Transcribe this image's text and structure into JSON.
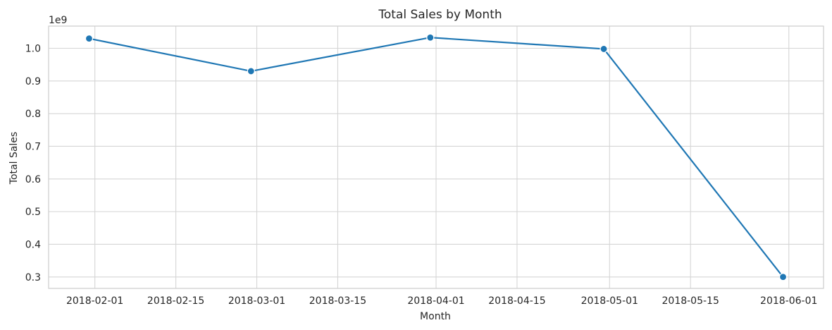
{
  "chart_data": {
    "type": "line",
    "title": "Total Sales by Month",
    "xlabel": "Month",
    "ylabel": "Total Sales",
    "y_multiplier_label": "1e9",
    "series": [
      {
        "x": [
          "2018-01-31",
          "2018-02-28",
          "2018-03-31",
          "2018-04-30",
          "2018-05-31"
        ],
        "values": [
          1.03,
          0.93,
          1.033,
          0.998,
          0.3
        ]
      }
    ],
    "x_ticks": [
      "2018-02-01",
      "2018-02-15",
      "2018-03-01",
      "2018-03-15",
      "2018-04-01",
      "2018-04-15",
      "2018-05-01",
      "2018-05-15",
      "2018-06-01"
    ],
    "y_ticks": [
      0.3,
      0.4,
      0.5,
      0.6,
      0.7,
      0.8,
      0.9,
      1.0
    ],
    "y_tick_labels": [
      "0.3",
      "0.4",
      "0.5",
      "0.6",
      "0.7",
      "0.8",
      "0.9",
      "1.0"
    ],
    "xlim": [
      "2018-01-24",
      "2018-06-07"
    ],
    "ylim": [
      0.265,
      1.068
    ],
    "grid": true,
    "line_color": "#1f77b4",
    "grid_color": "#d5d5d5",
    "spine_color": "#cccccc"
  }
}
